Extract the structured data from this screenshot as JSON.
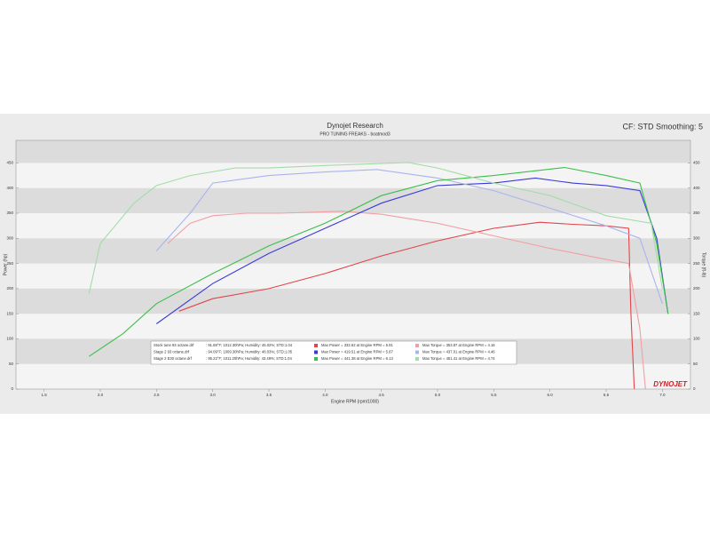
{
  "chart_data": {
    "type": "line",
    "title": "Dynojet Research",
    "subtitle": "PRO TUNING FREAKS - boatmod3",
    "settings_text": "CF: STD Smoothing: 5",
    "x_label": "Engine RPM (rpm/1000)",
    "y_label": "Power (hp)",
    "y2_label": "Torque (ft-lb)",
    "logo": "DYNOJET",
    "xlim": [
      1.25,
      7.25
    ],
    "xticks": [
      {
        "value": 1.5,
        "label": "1.5"
      },
      {
        "value": 2,
        "label": "2.0"
      },
      {
        "value": 2.5,
        "label": "2.5"
      },
      {
        "value": 3,
        "label": "3.0"
      },
      {
        "value": 3.5,
        "label": "3.5"
      },
      {
        "value": 4,
        "label": "4.0"
      },
      {
        "value": 4.5,
        "label": "4.5"
      },
      {
        "value": 5,
        "label": "5.0"
      },
      {
        "value": 5.5,
        "label": "5.5"
      },
      {
        "value": 6,
        "label": "6.0"
      },
      {
        "value": 6.5,
        "label": "6.5"
      },
      {
        "value": 7,
        "label": "7.0"
      }
    ],
    "ylim": [
      0,
      495
    ],
    "yticks": [
      0,
      50,
      100,
      150,
      200,
      250,
      300,
      350,
      400,
      450
    ],
    "y2lim": [
      0,
      495
    ],
    "y2ticks": [
      0,
      50,
      100,
      150,
      200,
      250,
      300,
      350,
      400,
      450
    ],
    "grid": true,
    "series": [
      {
        "color": "#e0454a",
        "x": [
          2.7,
          3.0,
          3.5,
          4.0,
          4.5,
          5.0,
          5.5,
          5.91,
          6.2,
          6.5,
          6.7,
          6.72,
          6.75
        ],
        "values": [
          155,
          180,
          200,
          230,
          265,
          295,
          320,
          332,
          328,
          325,
          320,
          150,
          0
        ]
      },
      {
        "color": "#f0a0a4",
        "axis": "y2",
        "x": [
          2.6,
          2.8,
          3.0,
          3.3,
          3.6,
          4.16,
          4.5,
          5.0,
          5.5,
          6.0,
          6.5,
          6.7,
          6.8,
          6.85
        ],
        "values": [
          290,
          330,
          345,
          350,
          350,
          354,
          348,
          330,
          305,
          280,
          258,
          250,
          120,
          0
        ]
      },
      {
        "color": "#3a3ad8",
        "x": [
          2.5,
          3.0,
          3.5,
          4.0,
          4.5,
          5.0,
          5.5,
          5.87,
          6.2,
          6.5,
          6.8,
          6.95,
          7.05
        ],
        "values": [
          130,
          210,
          270,
          320,
          370,
          405,
          410,
          420,
          410,
          405,
          395,
          300,
          150
        ]
      },
      {
        "color": "#a8b4f0",
        "axis": "y2",
        "x": [
          2.5,
          2.8,
          3.0,
          3.5,
          4.0,
          4.46,
          5.0,
          5.5,
          6.0,
          6.5,
          6.8,
          7.0
        ],
        "values": [
          275,
          350,
          410,
          425,
          432,
          437,
          420,
          395,
          360,
          325,
          300,
          170
        ]
      },
      {
        "color": "#3cbf4a",
        "x": [
          1.9,
          2.2,
          2.5,
          3.0,
          3.5,
          4.0,
          4.5,
          5.0,
          5.5,
          6.13,
          6.5,
          6.8,
          6.95,
          7.05
        ],
        "values": [
          65,
          110,
          170,
          230,
          285,
          330,
          385,
          415,
          425,
          441,
          425,
          410,
          290,
          150
        ]
      },
      {
        "color": "#a4dca8",
        "axis": "y2",
        "x": [
          1.9,
          2.0,
          2.3,
          2.5,
          2.8,
          3.2,
          3.5,
          4.0,
          4.74,
          5.0,
          5.5,
          6.0,
          6.5,
          6.9,
          7.0
        ],
        "values": [
          190,
          290,
          370,
          405,
          425,
          440,
          440,
          445,
          451,
          440,
          410,
          385,
          345,
          330,
          200
        ]
      }
    ],
    "legend": [
      {
        "file": "Stock tune 93 octane.drf",
        "conditions": ": 91.88°F; 1012.30hPa; Humidity: 45.02%; STD:1.04",
        "max_power": "Max Power = 332.62 at Engine RPM = 5.91",
        "max_torque": "Max Torque = 353.87 at Engine RPM = 4.16"
      },
      {
        "file": "Stage 2 93 octane.drf",
        "conditions": ": 94.09°F; 1009.30hPa; Humidity: 48.03%; STD:1.05",
        "max_power": "Max Power = 419.51 at Engine RPM = 5.87",
        "max_torque": "Max Torque = 437.01 at Engine RPM = 4.46"
      },
      {
        "file": "Stage 2 E30 octane.drf",
        "conditions": ": 95.22°F; 1011.20hPa; Humidity: 43.49%; STD:1.04",
        "max_power": "Max Power = 441.38 at Engine RPM = 6.13",
        "max_torque": "Max Torque = 451.41 at Engine RPM = 4.74"
      }
    ]
  }
}
